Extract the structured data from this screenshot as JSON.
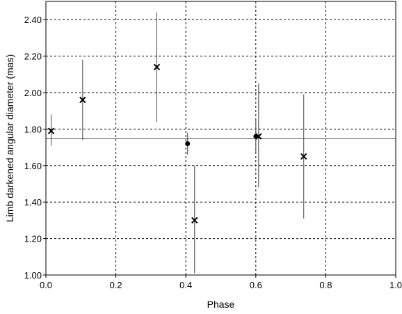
{
  "chart_data": {
    "type": "scatter",
    "title": "",
    "xlabel": "Phase",
    "ylabel": "Limb darkened angular diameter (mas)",
    "xlim": [
      0.0,
      1.0
    ],
    "ylim": [
      1.0,
      2.5
    ],
    "x_ticks": [
      "0.0",
      "0.2",
      "0.4",
      "0.6",
      "0.8",
      "1.0"
    ],
    "y_ticks": [
      "1.00",
      "1.20",
      "1.40",
      "1.60",
      "1.80",
      "2.00",
      "2.20",
      "2.40"
    ],
    "x_tick_values": [
      0.0,
      0.2,
      0.4,
      0.6,
      0.8,
      1.0
    ],
    "y_tick_values": [
      1.0,
      1.2,
      1.4,
      1.6,
      1.8,
      2.0,
      2.2,
      2.4
    ],
    "grid": true,
    "reference_line": {
      "y": 1.75
    },
    "series": [
      {
        "marker": "cross",
        "points": [
          {
            "x": 0.015,
            "y": 1.79,
            "yerr_low": 1.71,
            "yerr_high": 1.88
          },
          {
            "x": 0.105,
            "y": 1.96,
            "yerr_low": 1.74,
            "yerr_high": 2.18
          },
          {
            "x": 0.317,
            "y": 2.14,
            "yerr_low": 1.84,
            "yerr_high": 2.44
          },
          {
            "x": 0.425,
            "y": 1.3,
            "yerr_low": 1.01,
            "yerr_high": 1.6
          },
          {
            "x": 0.608,
            "y": 1.76,
            "yerr_low": 1.48,
            "yerr_high": 2.05
          },
          {
            "x": 0.737,
            "y": 1.65,
            "yerr_low": 1.31,
            "yerr_high": 1.99
          }
        ]
      },
      {
        "marker": "dot",
        "points": [
          {
            "x": 0.405,
            "y": 1.72,
            "yerr_low": 1.66,
            "yerr_high": 1.78
          },
          {
            "x": 0.6,
            "y": 1.76,
            "yerr_low": 1.67,
            "yerr_high": 1.85
          }
        ]
      }
    ]
  }
}
